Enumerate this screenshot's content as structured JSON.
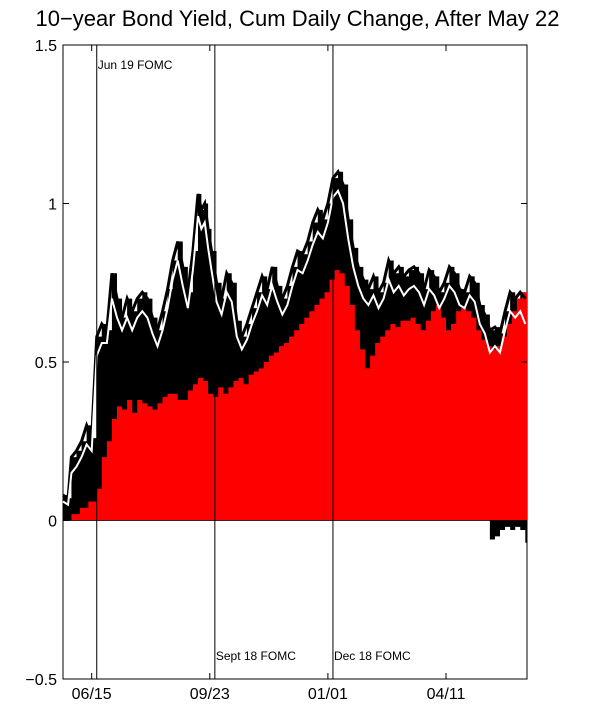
{
  "chart_data": {
    "type": "area",
    "title": "10−year Bond Yield, Cum Daily Change, After May 22",
    "xlabel": "",
    "ylabel": "",
    "ylim": [
      -0.5,
      1.5
    ],
    "yticks": [
      -0.5,
      0,
      0.5,
      1,
      1.5
    ],
    "ytick_labels": [
      "−0.5",
      "0",
      "0.5",
      "1",
      "1.5"
    ],
    "x_tick_labels": [
      {
        "day": 17,
        "label": "06/15"
      },
      {
        "day": 87,
        "label": "09/23"
      },
      {
        "day": 157,
        "label": "01/01"
      },
      {
        "day": 227,
        "label": "04/11"
      }
    ],
    "x_range_days": [
      0,
      275
    ],
    "grid": false,
    "colors": {
      "total": "#000000",
      "component": "#ff0000",
      "smoothed": "#ffffff"
    },
    "events": [
      {
        "day": 20,
        "label": "Jun 19 FOMC",
        "label_pos": "top"
      },
      {
        "day": 90,
        "label": "Sept 18 FOMC",
        "label_pos": "bottom"
      },
      {
        "day": 160,
        "label": "Dec 18 FOMC",
        "label_pos": "bottom"
      }
    ],
    "series": [
      {
        "role": "total",
        "points": [
          [
            0,
            0.08
          ],
          [
            3,
            0.07
          ],
          [
            5,
            0.2
          ],
          [
            8,
            0.22
          ],
          [
            11,
            0.25
          ],
          [
            14,
            0.3
          ],
          [
            17,
            0.26
          ],
          [
            20,
            0.58
          ],
          [
            23,
            0.62
          ],
          [
            26,
            0.6
          ],
          [
            29,
            0.78
          ],
          [
            32,
            0.7
          ],
          [
            35,
            0.64
          ],
          [
            38,
            0.7
          ],
          [
            41,
            0.66
          ],
          [
            44,
            0.7
          ],
          [
            47,
            0.72
          ],
          [
            50,
            0.7
          ],
          [
            53,
            0.64
          ],
          [
            56,
            0.6
          ],
          [
            59,
            0.66
          ],
          [
            62,
            0.73
          ],
          [
            65,
            0.82
          ],
          [
            68,
            0.88
          ],
          [
            71,
            0.8
          ],
          [
            74,
            0.72
          ],
          [
            77,
            0.85
          ],
          [
            80,
            1.03
          ],
          [
            82,
            0.98
          ],
          [
            84,
            1.0
          ],
          [
            86,
            0.92
          ],
          [
            88,
            0.85
          ],
          [
            91,
            0.75
          ],
          [
            94,
            0.7
          ],
          [
            97,
            0.78
          ],
          [
            100,
            0.75
          ],
          [
            103,
            0.63
          ],
          [
            106,
            0.58
          ],
          [
            109,
            0.62
          ],
          [
            112,
            0.67
          ],
          [
            115,
            0.72
          ],
          [
            118,
            0.77
          ],
          [
            121,
            0.73
          ],
          [
            124,
            0.8
          ],
          [
            127,
            0.74
          ],
          [
            130,
            0.7
          ],
          [
            133,
            0.74
          ],
          [
            136,
            0.8
          ],
          [
            139,
            0.85
          ],
          [
            142,
            0.84
          ],
          [
            145,
            0.88
          ],
          [
            148,
            0.94
          ],
          [
            151,
            0.98
          ],
          [
            154,
            0.95
          ],
          [
            157,
            1.0
          ],
          [
            160,
            1.08
          ],
          [
            163,
            1.1
          ],
          [
            166,
            1.06
          ],
          [
            169,
            0.95
          ],
          [
            172,
            0.86
          ],
          [
            175,
            0.8
          ],
          [
            178,
            0.76
          ],
          [
            181,
            0.73
          ],
          [
            184,
            0.77
          ],
          [
            187,
            0.72
          ],
          [
            190,
            0.75
          ],
          [
            193,
            0.82
          ],
          [
            196,
            0.78
          ],
          [
            199,
            0.8
          ],
          [
            202,
            0.77
          ],
          [
            205,
            0.79
          ],
          [
            208,
            0.8
          ],
          [
            211,
            0.78
          ],
          [
            214,
            0.73
          ],
          [
            217,
            0.79
          ],
          [
            220,
            0.77
          ],
          [
            223,
            0.72
          ],
          [
            226,
            0.75
          ],
          [
            229,
            0.8
          ],
          [
            232,
            0.78
          ],
          [
            235,
            0.73
          ],
          [
            238,
            0.72
          ],
          [
            241,
            0.77
          ],
          [
            244,
            0.75
          ],
          [
            247,
            0.68
          ],
          [
            250,
            0.65
          ],
          [
            253,
            0.6
          ],
          [
            256,
            0.61
          ],
          [
            259,
            0.59
          ],
          [
            262,
            0.66
          ],
          [
            265,
            0.72
          ],
          [
            268,
            0.7
          ],
          [
            271,
            0.72
          ],
          [
            274,
            0.7
          ]
        ]
      },
      {
        "role": "smoothed",
        "points": [
          [
            0,
            0.06
          ],
          [
            3,
            0.05
          ],
          [
            5,
            0.15
          ],
          [
            8,
            0.17
          ],
          [
            11,
            0.2
          ],
          [
            14,
            0.24
          ],
          [
            17,
            0.22
          ],
          [
            20,
            0.52
          ],
          [
            23,
            0.56
          ],
          [
            26,
            0.56
          ],
          [
            29,
            0.7
          ],
          [
            32,
            0.64
          ],
          [
            35,
            0.6
          ],
          [
            38,
            0.64
          ],
          [
            41,
            0.6
          ],
          [
            44,
            0.64
          ],
          [
            47,
            0.66
          ],
          [
            50,
            0.64
          ],
          [
            53,
            0.59
          ],
          [
            56,
            0.55
          ],
          [
            59,
            0.6
          ],
          [
            62,
            0.67
          ],
          [
            65,
            0.76
          ],
          [
            68,
            0.82
          ],
          [
            71,
            0.74
          ],
          [
            74,
            0.67
          ],
          [
            77,
            0.79
          ],
          [
            80,
            0.96
          ],
          [
            82,
            0.92
          ],
          [
            84,
            0.94
          ],
          [
            86,
            0.86
          ],
          [
            88,
            0.79
          ],
          [
            91,
            0.69
          ],
          [
            94,
            0.65
          ],
          [
            97,
            0.72
          ],
          [
            100,
            0.69
          ],
          [
            103,
            0.58
          ],
          [
            106,
            0.54
          ],
          [
            109,
            0.57
          ],
          [
            112,
            0.62
          ],
          [
            115,
            0.66
          ],
          [
            118,
            0.71
          ],
          [
            121,
            0.68
          ],
          [
            124,
            0.74
          ],
          [
            127,
            0.69
          ],
          [
            130,
            0.65
          ],
          [
            133,
            0.68
          ],
          [
            136,
            0.74
          ],
          [
            139,
            0.79
          ],
          [
            142,
            0.78
          ],
          [
            145,
            0.82
          ],
          [
            148,
            0.87
          ],
          [
            151,
            0.91
          ],
          [
            154,
            0.89
          ],
          [
            157,
            0.94
          ],
          [
            160,
            1.02
          ],
          [
            163,
            1.04
          ],
          [
            166,
            1.0
          ],
          [
            169,
            0.89
          ],
          [
            172,
            0.8
          ],
          [
            175,
            0.74
          ],
          [
            178,
            0.7
          ],
          [
            181,
            0.68
          ],
          [
            184,
            0.71
          ],
          [
            187,
            0.67
          ],
          [
            190,
            0.7
          ],
          [
            193,
            0.76
          ],
          [
            196,
            0.72
          ],
          [
            199,
            0.74
          ],
          [
            202,
            0.71
          ],
          [
            205,
            0.73
          ],
          [
            208,
            0.74
          ],
          [
            211,
            0.72
          ],
          [
            214,
            0.68
          ],
          [
            217,
            0.73
          ],
          [
            220,
            0.71
          ],
          [
            223,
            0.67
          ],
          [
            226,
            0.7
          ],
          [
            229,
            0.74
          ],
          [
            232,
            0.72
          ],
          [
            235,
            0.68
          ],
          [
            238,
            0.67
          ],
          [
            241,
            0.71
          ],
          [
            244,
            0.69
          ],
          [
            247,
            0.62
          ],
          [
            250,
            0.59
          ],
          [
            253,
            0.53
          ],
          [
            256,
            0.55
          ],
          [
            259,
            0.53
          ],
          [
            262,
            0.6
          ],
          [
            265,
            0.66
          ],
          [
            268,
            0.64
          ],
          [
            271,
            0.66
          ],
          [
            274,
            0.62
          ]
        ]
      },
      {
        "role": "component",
        "points": [
          [
            0,
            0.0
          ],
          [
            5,
            0.02
          ],
          [
            10,
            0.04
          ],
          [
            15,
            0.06
          ],
          [
            20,
            0.1
          ],
          [
            23,
            0.2
          ],
          [
            26,
            0.25
          ],
          [
            29,
            0.32
          ],
          [
            32,
            0.36
          ],
          [
            35,
            0.35
          ],
          [
            38,
            0.38
          ],
          [
            41,
            0.34
          ],
          [
            44,
            0.38
          ],
          [
            47,
            0.37
          ],
          [
            50,
            0.36
          ],
          [
            53,
            0.35
          ],
          [
            56,
            0.37
          ],
          [
            59,
            0.39
          ],
          [
            62,
            0.4
          ],
          [
            65,
            0.4
          ],
          [
            68,
            0.38
          ],
          [
            71,
            0.38
          ],
          [
            74,
            0.41
          ],
          [
            77,
            0.43
          ],
          [
            80,
            0.45
          ],
          [
            83,
            0.44
          ],
          [
            86,
            0.4
          ],
          [
            89,
            0.39
          ],
          [
            92,
            0.42
          ],
          [
            95,
            0.4
          ],
          [
            98,
            0.42
          ],
          [
            101,
            0.44
          ],
          [
            104,
            0.45
          ],
          [
            107,
            0.43
          ],
          [
            110,
            0.46
          ],
          [
            113,
            0.47
          ],
          [
            116,
            0.48
          ],
          [
            119,
            0.5
          ],
          [
            122,
            0.52
          ],
          [
            125,
            0.53
          ],
          [
            128,
            0.55
          ],
          [
            131,
            0.56
          ],
          [
            134,
            0.58
          ],
          [
            137,
            0.6
          ],
          [
            140,
            0.62
          ],
          [
            143,
            0.64
          ],
          [
            146,
            0.66
          ],
          [
            149,
            0.68
          ],
          [
            152,
            0.7
          ],
          [
            155,
            0.72
          ],
          [
            158,
            0.76
          ],
          [
            161,
            0.79
          ],
          [
            164,
            0.78
          ],
          [
            167,
            0.74
          ],
          [
            170,
            0.68
          ],
          [
            173,
            0.6
          ],
          [
            176,
            0.54
          ],
          [
            179,
            0.48
          ],
          [
            182,
            0.52
          ],
          [
            185,
            0.56
          ],
          [
            188,
            0.58
          ],
          [
            191,
            0.6
          ],
          [
            194,
            0.62
          ],
          [
            197,
            0.61
          ],
          [
            200,
            0.63
          ],
          [
            203,
            0.63
          ],
          [
            206,
            0.64
          ],
          [
            209,
            0.62
          ],
          [
            212,
            0.6
          ],
          [
            215,
            0.63
          ],
          [
            218,
            0.66
          ],
          [
            221,
            0.68
          ],
          [
            224,
            0.64
          ],
          [
            227,
            0.6
          ],
          [
            230,
            0.62
          ],
          [
            233,
            0.66
          ],
          [
            236,
            0.67
          ],
          [
            239,
            0.66
          ],
          [
            242,
            0.64
          ],
          [
            245,
            0.6
          ],
          [
            248,
            0.57
          ],
          [
            251,
            0.55
          ],
          [
            254,
            0.54
          ],
          [
            257,
            0.55
          ],
          [
            260,
            0.58
          ],
          [
            263,
            0.62
          ],
          [
            266,
            0.66
          ],
          [
            269,
            0.7
          ],
          [
            272,
            0.72
          ],
          [
            275,
            0.73
          ]
        ]
      },
      {
        "role": "negative-component",
        "points": [
          [
            250,
            0.0
          ],
          [
            253,
            -0.06
          ],
          [
            256,
            -0.05
          ],
          [
            259,
            -0.03
          ],
          [
            262,
            -0.02
          ],
          [
            265,
            -0.03
          ],
          [
            268,
            -0.02
          ],
          [
            271,
            -0.03
          ],
          [
            274,
            -0.07
          ],
          [
            275,
            0.0
          ]
        ]
      }
    ]
  }
}
